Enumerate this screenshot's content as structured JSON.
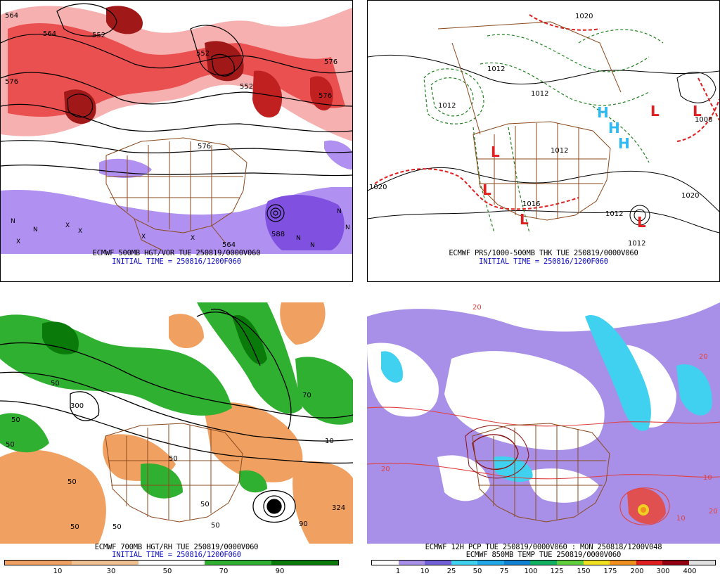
{
  "panels": [
    {
      "caption_line1": "ECMWF 500MB HGT/VOR TUE 250819/0000V060",
      "caption_line2": "INITIAL TIME = 250816/1200F060",
      "contour_labels": [
        "564",
        "552",
        "576",
        "552",
        "552",
        "576",
        "564",
        "588",
        "576",
        "564",
        "576"
      ],
      "markers": [
        "N",
        "X",
        "N",
        "X",
        "X",
        "X",
        "X",
        "N",
        "N",
        "N",
        "N"
      ]
    },
    {
      "caption_line1": "ECMWF PRS/1000-500MB THK TUE 250819/0000V060",
      "caption_line2": "INITIAL TIME = 250816/1200F060",
      "contour_labels": [
        "1020",
        "1012",
        "1012",
        "1012",
        "1020",
        "1012",
        "1012",
        "1020",
        "1008",
        "1016",
        "1012"
      ],
      "high_low_markers": [
        "L",
        "L",
        "L",
        "L",
        "L",
        "L",
        "H",
        "H",
        "H"
      ]
    },
    {
      "caption_line1": "ECMWF 700MB HGT/RH TUE 250819/0000V060",
      "caption_line2": "INITIAL TIME = 250816/1200F060",
      "contour_labels": [
        "50",
        "50",
        "300",
        "50",
        "50",
        "50",
        "50",
        "50",
        "50",
        "50",
        "90",
        "324",
        "70",
        "10"
      ],
      "colorbar_labels": [
        "10",
        "30",
        "50",
        "70",
        "90"
      ]
    },
    {
      "caption_line1": "ECMWF 12H PCP TUE 250819/0000V060 : MON 250818/1200V048",
      "caption_line2": "ECMWF 850MB TEMP TUE 250819/0000V060",
      "contour_labels": [
        "20",
        "20",
        "10",
        "10",
        "20",
        "20"
      ],
      "colorbar_labels": [
        "1",
        "10",
        "25",
        "50",
        "75",
        "100",
        "125",
        "150",
        "175",
        "200",
        "300",
        "400"
      ]
    }
  ],
  "colors": {
    "vorticity_red": "#e83838",
    "vorticity_pink": "#f4a0a0",
    "vorticity_dark": "#8a1010",
    "vorticity_purple": "#9060e0",
    "rh_green": "#30b030",
    "rh_darkgreen": "#0a7a0a",
    "rh_orange": "#f0a060",
    "thickness_green": "#208020",
    "thickness_red": "#e02020",
    "high_blue": "#30b8f0",
    "border_brown": "#8b4a1e",
    "pcp_purple": "#9070e0",
    "pcp_cyan": "#40d0f0",
    "temp_red": "#e04040"
  }
}
